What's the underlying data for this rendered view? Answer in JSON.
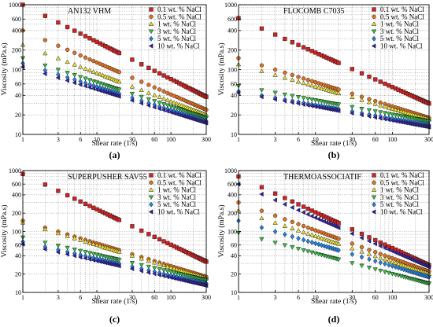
{
  "chart_data": [
    {
      "type": "scatter",
      "panel_label": "(a)",
      "title": "AN132 VHM",
      "xlabel": "Shear rate (1/s)",
      "ylabel": "Viscosity (mPa.s)",
      "x_scale": "log",
      "y_scale": "log",
      "xlim": [
        1,
        300
      ],
      "ylim": [
        10,
        1000
      ],
      "x_ticks": [
        "1",
        "3",
        "6",
        "10",
        "30",
        "60",
        "100",
        "300"
      ],
      "y_ticks": [
        "10",
        "20",
        "40",
        "60",
        "100",
        "200",
        "400",
        "600",
        "1000"
      ],
      "grid": true,
      "legend_position": "top-right",
      "series": [
        {
          "name": "0.1  wt. % NaCl",
          "marker": "square",
          "color": "#d62020",
          "y_at_1": 1000,
          "y_at_300": 38
        },
        {
          "name": "0.5 wt. % NaCl",
          "marker": "circle",
          "color": "#e07020",
          "y_at_1": 400,
          "y_at_300": 24
        },
        {
          "name": "1   wt. % NaCl",
          "marker": "triangle-up",
          "color": "#e8e030",
          "y_at_1": 240,
          "y_at_300": 20
        },
        {
          "name": "3   wt. % NaCl",
          "marker": "triangle-down",
          "color": "#30c040",
          "y_at_1": 150,
          "y_at_300": 18
        },
        {
          "name": "5   wt. % NaCl",
          "marker": "diamond",
          "color": "#2080e0",
          "y_at_1": 125,
          "y_at_300": 16
        },
        {
          "name": "10  wt. % NaCl",
          "marker": "triangle-left",
          "color": "#3020b0",
          "y_at_1": 110,
          "y_at_300": 15
        }
      ]
    },
    {
      "type": "scatter",
      "panel_label": "(b)",
      "title": "FLOCOMB C7035",
      "xlabel": "Shear rate (1/s)",
      "ylabel": "Viscosity (mPa.s)",
      "x_scale": "log",
      "y_scale": "log",
      "xlim": [
        1,
        300
      ],
      "ylim": [
        10,
        1000
      ],
      "x_ticks": [
        "1",
        "3",
        "6",
        "10",
        "30",
        "60",
        "100",
        "300"
      ],
      "y_ticks": [
        "10",
        "20",
        "40",
        "60",
        "100",
        "200",
        "400",
        "600",
        "1000"
      ],
      "grid": true,
      "legend_position": "top-right",
      "series": [
        {
          "name": "0.1  wt. % NaCl",
          "marker": "square",
          "color": "#d62020",
          "y_at_1": 620,
          "y_at_300": 30
        },
        {
          "name": "0.5 wt. % NaCl",
          "marker": "circle",
          "color": "#e07020",
          "y_at_1": 150,
          "y_at_300": 18
        },
        {
          "name": "1   wt. % NaCl",
          "marker": "triangle-up",
          "color": "#e8e030",
          "y_at_1": 120,
          "y_at_300": 17
        },
        {
          "name": "3   wt. % NaCl",
          "marker": "triangle-down",
          "color": "#30c040",
          "y_at_1": 56,
          "y_at_300": 16
        },
        {
          "name": "5   wt. % NaCl",
          "marker": "diamond",
          "color": "#2080e0",
          "y_at_1": 46,
          "y_at_300": 14
        },
        {
          "name": "10  wt. % NaCl",
          "marker": "triangle-left",
          "color": "#3020b0",
          "y_at_1": 44,
          "y_at_300": 13
        }
      ]
    },
    {
      "type": "scatter",
      "panel_label": "(c)",
      "title": "SUPERPUSHER SAV55",
      "xlabel": "Shear rate (1/s)",
      "ylabel": "Viscosity (mPa.s)",
      "x_scale": "log",
      "y_scale": "log",
      "xlim": [
        1,
        300
      ],
      "ylim": [
        10,
        1000
      ],
      "x_ticks": [
        "1",
        "3",
        "6",
        "10",
        "30",
        "60",
        "100",
        "300"
      ],
      "y_ticks": [
        "10",
        "20",
        "40",
        "60",
        "100",
        "200",
        "400",
        "600",
        "1000"
      ],
      "grid": true,
      "legend_position": "top-right",
      "series": [
        {
          "name": "0.1  wt. % NaCl",
          "marker": "square",
          "color": "#d62020",
          "y_at_1": 880,
          "y_at_300": 32
        },
        {
          "name": "0.5 wt. % NaCl",
          "marker": "circle",
          "color": "#e07020",
          "y_at_1": 150,
          "y_at_300": 18
        },
        {
          "name": "1   wt. % NaCl",
          "marker": "triangle-up",
          "color": "#e8e030",
          "y_at_1": 140,
          "y_at_300": 17
        },
        {
          "name": "3   wt. % NaCl",
          "marker": "triangle-down",
          "color": "#30c040",
          "y_at_1": 80,
          "y_at_300": 16
        },
        {
          "name": "5   wt. % NaCl",
          "marker": "diamond",
          "color": "#2080e0",
          "y_at_1": 68,
          "y_at_300": 14
        },
        {
          "name": "10  wt. % NaCl",
          "marker": "triangle-left",
          "color": "#3020b0",
          "y_at_1": 62,
          "y_at_300": 13
        }
      ]
    },
    {
      "type": "scatter",
      "panel_label": "(d)",
      "title": "THERMOASSOCIATIF",
      "xlabel": "Shear rate (1/s)",
      "ylabel": "Viscosity (mPa.s)",
      "x_scale": "log",
      "y_scale": "log",
      "xlim": [
        1,
        300
      ],
      "ylim": [
        10,
        1000
      ],
      "x_ticks": [
        "1",
        "3",
        "6",
        "10",
        "30",
        "60",
        "100",
        "300"
      ],
      "y_ticks": [
        "10",
        "20",
        "40",
        "60",
        "100",
        "200",
        "400",
        "600",
        "1000"
      ],
      "grid": true,
      "legend_position": "top-right",
      "series": [
        {
          "name": "0.1  wt. % NaCl",
          "marker": "square",
          "color": "#d62020",
          "y_at_1": 800,
          "y_at_300": 28
        },
        {
          "name": "0.5 wt. % NaCl",
          "marker": "circle",
          "color": "#e07020",
          "y_at_1": 300,
          "y_at_300": 22
        },
        {
          "name": "1   wt. % NaCl",
          "marker": "triangle-up",
          "color": "#e8e030",
          "y_at_1": 220,
          "y_at_300": 20
        },
        {
          "name": "3   wt. % NaCl",
          "marker": "triangle-down",
          "color": "#30c040",
          "y_at_1": 95,
          "y_at_300": 14
        },
        {
          "name": "5   wt. % NaCl",
          "marker": "diamond",
          "color": "#2080e0",
          "y_at_1": 150,
          "y_at_300": 18
        },
        {
          "name": "10  wt. % NaCl",
          "marker": "triangle-left",
          "color": "#3020b0",
          "y_at_1": 600,
          "y_at_300": 26
        }
      ]
    }
  ]
}
